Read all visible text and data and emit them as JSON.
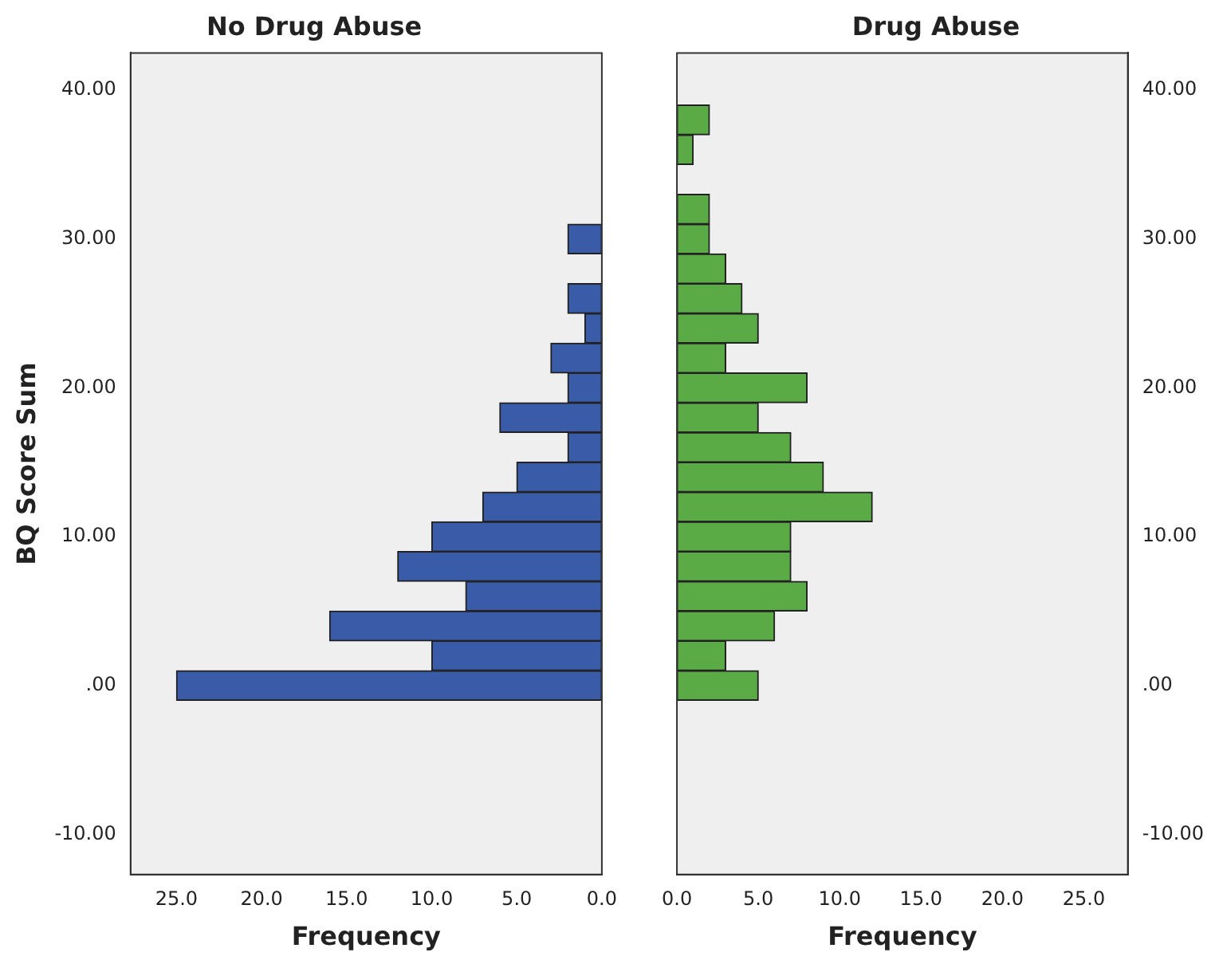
{
  "chart_data": [
    {
      "type": "histogram",
      "orientation": "horizontal",
      "title": "No Drug Abuse",
      "xlabel": "Frequency",
      "ylabel": "BQ Score Sum",
      "color": "#3a5ca8",
      "bins": [
        -1,
        1,
        3,
        5,
        7,
        9,
        11,
        13,
        15,
        17,
        19,
        21,
        23,
        25,
        27,
        29,
        31,
        33,
        35,
        37,
        39
      ],
      "values": [
        25,
        10,
        16,
        8,
        12,
        10,
        7,
        5,
        2,
        6,
        2,
        3,
        1,
        2,
        0,
        2,
        0,
        0,
        0,
        0
      ],
      "xlim": [
        27.7,
        0
      ],
      "xticks": [
        {
          "value": 25,
          "label": "25.0"
        },
        {
          "value": 20,
          "label": "20.0"
        },
        {
          "value": 15,
          "label": "15.0"
        },
        {
          "value": 10,
          "label": "10.0"
        },
        {
          "value": 5,
          "label": "5.0"
        },
        {
          "value": 0,
          "label": "0.0"
        }
      ],
      "ylim": [
        -12.7,
        42.5
      ],
      "yticks": [
        {
          "value": -10,
          "label": "-10.00"
        },
        {
          "value": 0,
          "label": ".00"
        },
        {
          "value": 10,
          "label": "10.00"
        },
        {
          "value": 20,
          "label": "20.00"
        },
        {
          "value": 30,
          "label": "30.00"
        },
        {
          "value": 40,
          "label": "40.00"
        }
      ]
    },
    {
      "type": "histogram",
      "orientation": "horizontal",
      "title": "Drug Abuse",
      "xlabel": "Frequency",
      "color": "#5aaa46",
      "bins": [
        -1,
        1,
        3,
        5,
        7,
        9,
        11,
        13,
        15,
        17,
        19,
        21,
        23,
        25,
        27,
        29,
        31,
        33,
        35,
        37,
        39
      ],
      "values": [
        5,
        3,
        6,
        8,
        7,
        7,
        12,
        9,
        7,
        5,
        8,
        3,
        5,
        4,
        3,
        2,
        2,
        0,
        1,
        2
      ],
      "xlim": [
        0,
        27.7
      ],
      "xticks": [
        {
          "value": 0,
          "label": "0.0"
        },
        {
          "value": 5,
          "label": "5.0"
        },
        {
          "value": 10,
          "label": "10.0"
        },
        {
          "value": 15,
          "label": "15.0"
        },
        {
          "value": 20,
          "label": "20.0"
        },
        {
          "value": 25,
          "label": "25.0"
        }
      ],
      "ylim": [
        -12.7,
        42.5
      ],
      "yticks": [
        {
          "value": -10,
          "label": "-10.00"
        },
        {
          "value": 0,
          "label": ".00"
        },
        {
          "value": 10,
          "label": "10.00"
        },
        {
          "value": 20,
          "label": "20.00"
        },
        {
          "value": 30,
          "label": "30.00"
        },
        {
          "value": 40,
          "label": "40.00"
        }
      ]
    }
  ]
}
